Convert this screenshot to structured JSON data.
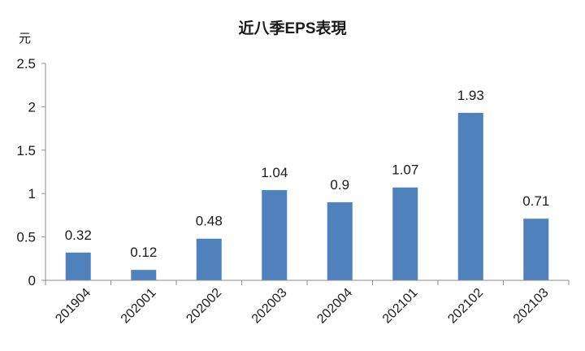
{
  "chart_data": {
    "type": "bar",
    "title": "近八季EPS表現",
    "ylabel": "元",
    "xlabel": "",
    "categories": [
      "201904",
      "202001",
      "202002",
      "202003",
      "202004",
      "202101",
      "202102",
      "202103"
    ],
    "values": [
      0.32,
      0.12,
      0.48,
      1.04,
      0.9,
      1.07,
      1.93,
      0.71
    ],
    "data_labels": [
      "0.32",
      "0.12",
      "0.48",
      "1.04",
      "0.9",
      "1.07",
      "1.93",
      "0.71"
    ],
    "yticks": [
      "0",
      "0.5",
      "1",
      "1.5",
      "2",
      "2.5"
    ],
    "ylim": [
      0,
      2.5
    ],
    "grid": false,
    "legend": "none",
    "bar_color": "#4f81bd"
  }
}
